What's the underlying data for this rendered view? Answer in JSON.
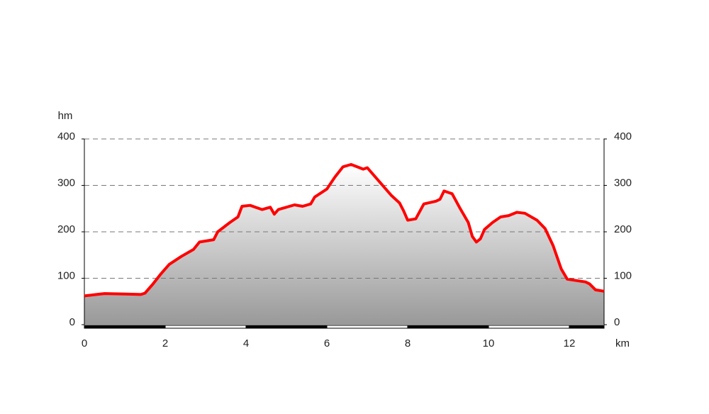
{
  "chart_data": {
    "type": "area-line",
    "y_label": "hm",
    "x_label": "km",
    "color": "#ff0000",
    "fill_top": "#ffffff",
    "fill_bottom": "#999999",
    "x": [
      0,
      0.3,
      0.5,
      1.0,
      1.4,
      1.5,
      1.7,
      1.9,
      2.1,
      2.4,
      2.7,
      2.85,
      3.2,
      3.3,
      3.6,
      3.8,
      3.9,
      4.1,
      4.4,
      4.6,
      4.7,
      4.8,
      5.2,
      5.4,
      5.6,
      5.7,
      6.0,
      6.2,
      6.4,
      6.6,
      6.9,
      7.0,
      7.2,
      7.6,
      7.8,
      7.9,
      8.0,
      8.2,
      8.4,
      8.7,
      8.8,
      8.9,
      9.1,
      9.3,
      9.5,
      9.6,
      9.7,
      9.8,
      9.9,
      10.1,
      10.3,
      10.5,
      10.7,
      10.9,
      11.2,
      11.4,
      11.6,
      11.8,
      11.95,
      12.4,
      12.5,
      12.65,
      12.86
    ],
    "y": [
      62,
      65,
      67,
      66,
      65,
      68,
      88,
      110,
      130,
      147,
      162,
      178,
      183,
      200,
      220,
      232,
      255,
      257,
      248,
      253,
      238,
      248,
      258,
      255,
      260,
      275,
      292,
      318,
      340,
      345,
      335,
      338,
      318,
      278,
      262,
      245,
      225,
      228,
      260,
      266,
      270,
      288,
      282,
      250,
      220,
      190,
      178,
      185,
      205,
      220,
      232,
      235,
      242,
      240,
      225,
      207,
      170,
      120,
      98,
      92,
      88,
      75,
      72
    ],
    "xlim": [
      0,
      12.86
    ],
    "xticks": [
      0,
      2,
      4,
      6,
      8,
      10,
      12
    ],
    "ylim": [
      0,
      400
    ],
    "yticks": [
      0,
      100,
      200,
      300,
      400
    ],
    "y2lim": [
      0,
      400
    ],
    "y2ticks": [
      0,
      100,
      200,
      300,
      400
    ],
    "grid": true
  }
}
